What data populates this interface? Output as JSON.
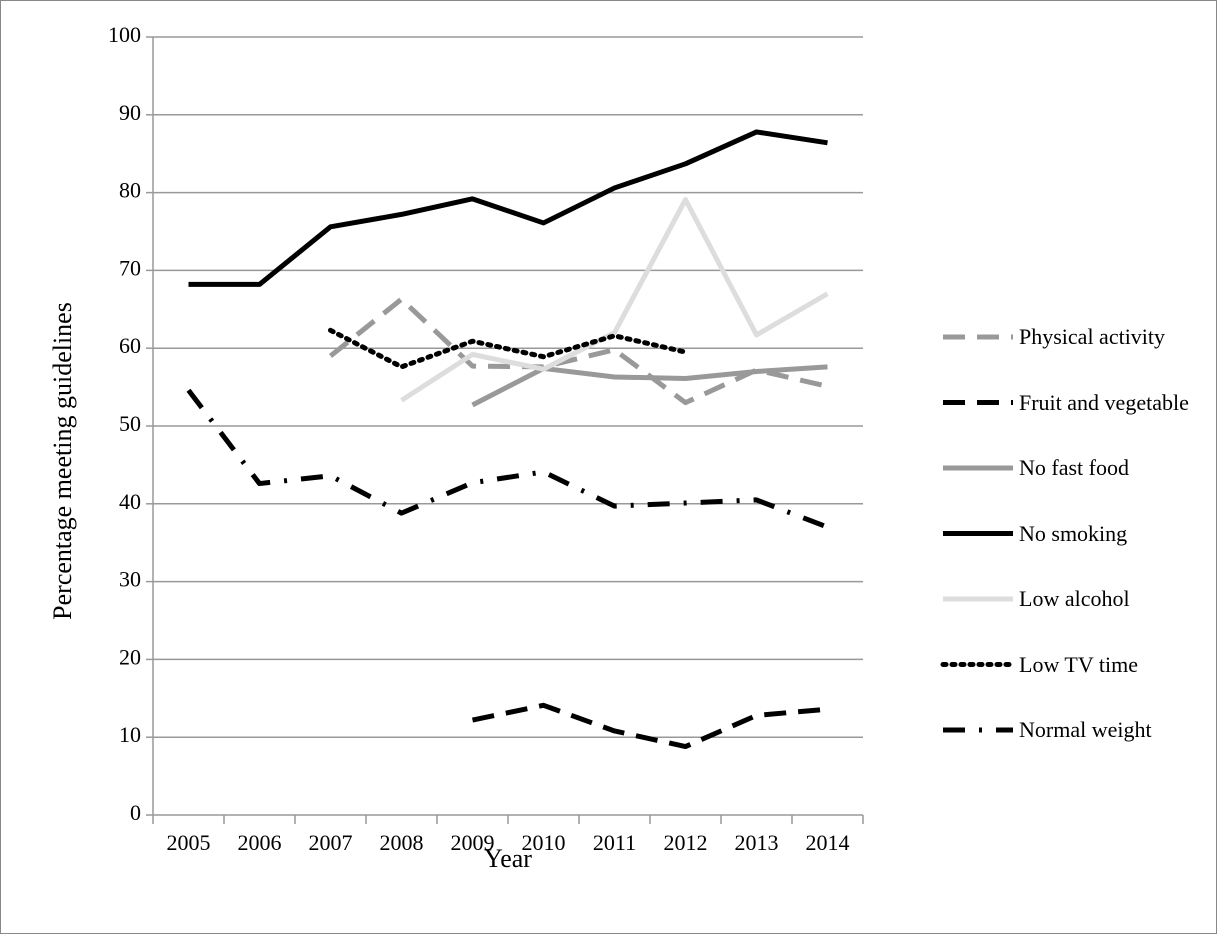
{
  "chart_data": {
    "type": "line",
    "x_label": "Year",
    "y_label": "Percentage meeting guidelines",
    "categories": [
      "2005",
      "2006",
      "2007",
      "2008",
      "2009",
      "2010",
      "2011",
      "2012",
      "2013",
      "2014"
    ],
    "ylim": [
      0,
      100
    ],
    "yticks": [
      0,
      10,
      20,
      30,
      40,
      50,
      60,
      70,
      80,
      90,
      100
    ],
    "grid": true,
    "legend": "right",
    "series": [
      {
        "name": "Physical activity",
        "color": "#999999",
        "dash": "dashed",
        "values": [
          null,
          null,
          59.0,
          66.3,
          57.7,
          57.6,
          59.8,
          53.0,
          57.2,
          55.1
        ]
      },
      {
        "name": "Fruit and vegetable",
        "color": "#000000",
        "dash": "dashed",
        "values": [
          null,
          null,
          null,
          null,
          12.2,
          14.1,
          10.8,
          8.8,
          12.8,
          13.6
        ]
      },
      {
        "name": "No fast food",
        "color": "#999999",
        "dash": "solid",
        "values": [
          null,
          null,
          null,
          null,
          52.7,
          57.4,
          56.3,
          56.1,
          57.0,
          57.6
        ]
      },
      {
        "name": "No smoking",
        "color": "#000000",
        "dash": "solid",
        "values": [
          68.2,
          68.2,
          75.6,
          77.2,
          79.2,
          76.1,
          80.6,
          83.7,
          87.8,
          86.4
        ]
      },
      {
        "name": "Low alcohol",
        "color": "#dddddd",
        "dash": "solid",
        "values": [
          null,
          null,
          null,
          53.3,
          59.2,
          57.3,
          62.0,
          79.1,
          61.7,
          67.0
        ]
      },
      {
        "name": "Low TV time",
        "color": "#000000",
        "dash": "dotted",
        "values": [
          null,
          null,
          62.3,
          57.6,
          60.9,
          58.9,
          61.6,
          59.5,
          null,
          null
        ]
      },
      {
        "name": "Normal weight",
        "color": "#000000",
        "dash": "dashdot",
        "values": [
          54.6,
          42.6,
          43.6,
          38.8,
          42.7,
          44.1,
          39.7,
          40.1,
          40.5,
          37.0
        ]
      }
    ]
  }
}
